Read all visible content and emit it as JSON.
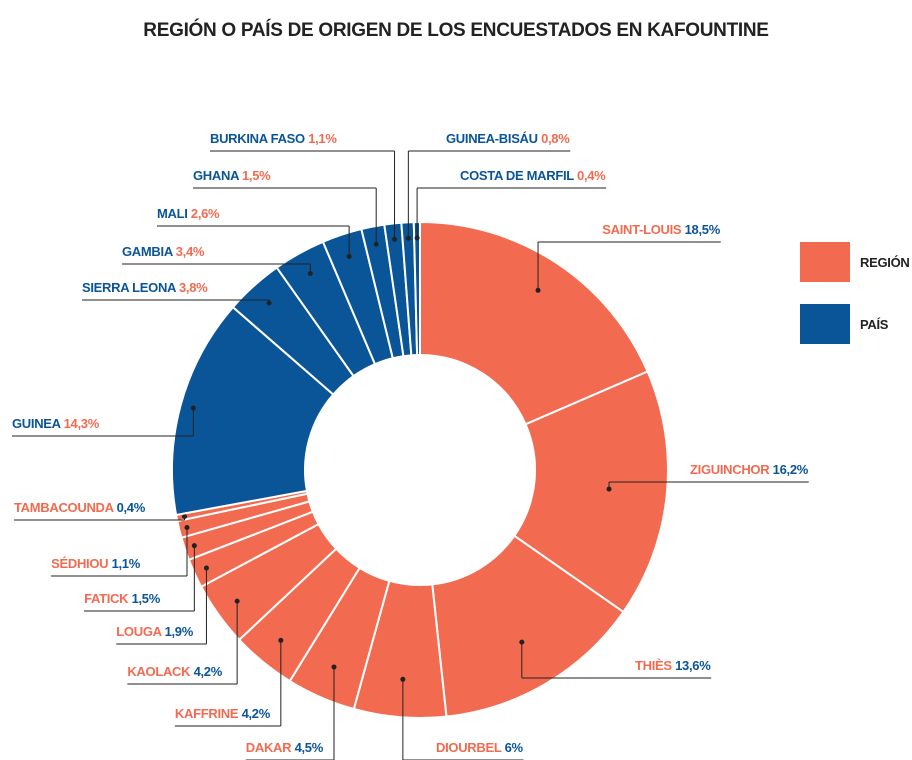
{
  "chart_data": {
    "type": "donut",
    "title": "REGIÓN O PAÍS DE ORIGEN DE LOS ENCUESTADOS EN KAFOUNTINE",
    "categories": [
      "SAINT-LOUIS",
      "ZIGUINCHOR",
      "THIÈS",
      "DIOURBEL",
      "DAKAR",
      "KAFFRINE",
      "KAOLACK",
      "LOUGA",
      "FATICK",
      "SÉDHIOU",
      "TAMBACOUNDA",
      "GUINEA",
      "SIERRA LEONA",
      "GAMBIA",
      "MALI",
      "GHANA",
      "BURKINA FASO",
      "GUINEA-BISÁU",
      "COSTA DE MARFIL"
    ],
    "values": [
      18.5,
      16.2,
      13.6,
      6,
      4.5,
      4.2,
      4.2,
      1.9,
      1.5,
      1.1,
      0.4,
      14.3,
      3.8,
      3.4,
      2.6,
      1.5,
      1.1,
      0.8,
      0.4
    ],
    "value_labels": [
      "18,5%",
      "16,2%",
      "13,6%",
      "6%",
      "4,5%",
      "4,2%",
      "4,2%",
      "1,9%",
      "1,5%",
      "1,1%",
      "0,4%",
      "14,3%",
      "3,8%",
      "3,4%",
      "2,6%",
      "1,5%",
      "1,1%",
      "0,8%",
      "0,4%"
    ],
    "colors": [
      "#f26b50",
      "#f26b50",
      "#f26b50",
      "#f26b50",
      "#f26b50",
      "#f26b50",
      "#f26b50",
      "#f26b50",
      "#f26b50",
      "#f26b50",
      "#f26b50",
      "#0a5598",
      "#0a5598",
      "#0a5598",
      "#0a5598",
      "#0a5598",
      "#0a5598",
      "#0a5598",
      "#0a5598"
    ],
    "legend": [
      {
        "name": "REGIÓN",
        "color": "#f26b50"
      },
      {
        "name": "PAÍS",
        "color": "#0a5598"
      }
    ]
  }
}
